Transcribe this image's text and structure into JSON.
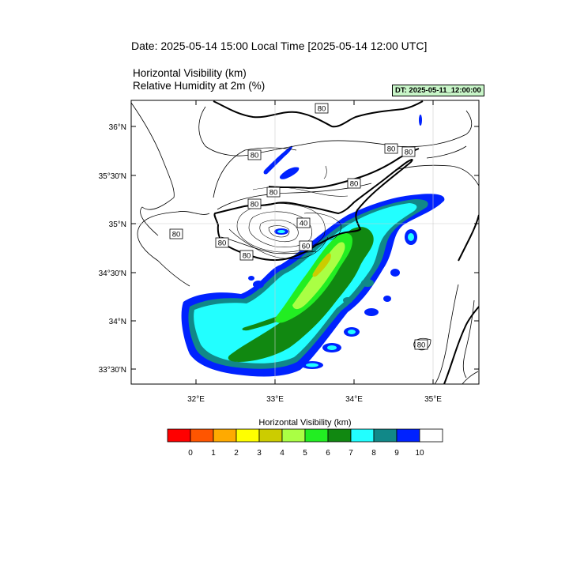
{
  "header": {
    "date_line": "Date: 2025-05-14  15:00 Local Time [2025-05-14  12:00 UTC]",
    "field_1": "Horizontal Visibility   (km)",
    "field_2": "Relative Humidity at 2m   (%)",
    "dt_badge": "DT: 2025-05-11_12:00:00"
  },
  "map": {
    "lat_ticks": [
      "36°N",
      "35°30'N",
      "35°N",
      "34°30'N",
      "34°N",
      "33°30'N"
    ],
    "lon_ticks": [
      "32°E",
      "33°E",
      "34°E",
      "35°E"
    ],
    "contour_labels": [
      "80",
      "80",
      "80",
      "80",
      "80",
      "80",
      "80",
      "80",
      "80",
      "40",
      "60",
      "80",
      "80"
    ],
    "colors": {
      "coast": "#000000",
      "contour": "#000000"
    }
  },
  "colorbar": {
    "title": "Horizontal Visibility  (km)",
    "labels": [
      "0",
      "1",
      "2",
      "3",
      "4",
      "5",
      "6",
      "7",
      "8",
      "9",
      "10"
    ],
    "colors": [
      "#ff0000",
      "#ff5500",
      "#ffaa00",
      "#ffff00",
      "#cccc00",
      "#aaff44",
      "#22ee22",
      "#118811",
      "#22ffff",
      "#118888",
      "#0022ff",
      "#ffffff"
    ]
  }
}
